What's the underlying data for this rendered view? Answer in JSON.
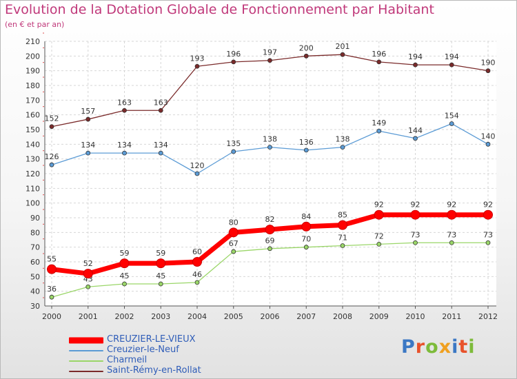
{
  "title": "Evolution de la Dotation Globale de Fonctionnement par Habitant",
  "subtitle": "(en € et par an)",
  "logo": {
    "text": "Proxiti",
    "colors": [
      "#3b78c4",
      "#e8522b",
      "#7dbb3a",
      "#f0a020",
      "#3b78c4",
      "#e8522b",
      "#7dbb3a"
    ]
  },
  "chart_data": {
    "type": "line",
    "title": "Evolution de la Dotation Globale de Fonctionnement par Habitant",
    "subtitle": "(en € et par an)",
    "x": [
      "2000",
      "2001",
      "2002",
      "2003",
      "2004",
      "2005",
      "2006",
      "2007",
      "2008",
      "2009",
      "2010",
      "2011",
      "2012"
    ],
    "ylim": [
      30,
      210
    ],
    "yticks": [
      30,
      40,
      50,
      60,
      70,
      80,
      90,
      100,
      110,
      120,
      130,
      140,
      150,
      160,
      170,
      180,
      190,
      200,
      210
    ],
    "grid": true,
    "legend_position": "bottom-left",
    "series": [
      {
        "name": "CREUZIER-LE-VIEUX",
        "color": "#ff0000",
        "bold": true,
        "values": [
          55,
          52,
          59,
          59,
          60,
          80,
          82,
          84,
          85,
          92,
          92,
          92,
          92
        ]
      },
      {
        "name": "Creuzier-le-Neuf",
        "color": "#5b9bd5",
        "values": [
          126,
          134,
          134,
          134,
          120,
          135,
          138,
          136,
          138,
          149,
          144,
          154,
          140
        ]
      },
      {
        "name": "Charmeil",
        "color": "#9ad668",
        "values": [
          36,
          43,
          45,
          45,
          46,
          67,
          69,
          70,
          71,
          72,
          73,
          73,
          73
        ]
      },
      {
        "name": "Saint-Rémy-en-Rollat",
        "color": "#7a2a2a",
        "values": [
          152,
          157,
          163,
          163,
          193,
          196,
          197,
          200,
          201,
          196,
          194,
          194,
          190
        ]
      }
    ]
  }
}
